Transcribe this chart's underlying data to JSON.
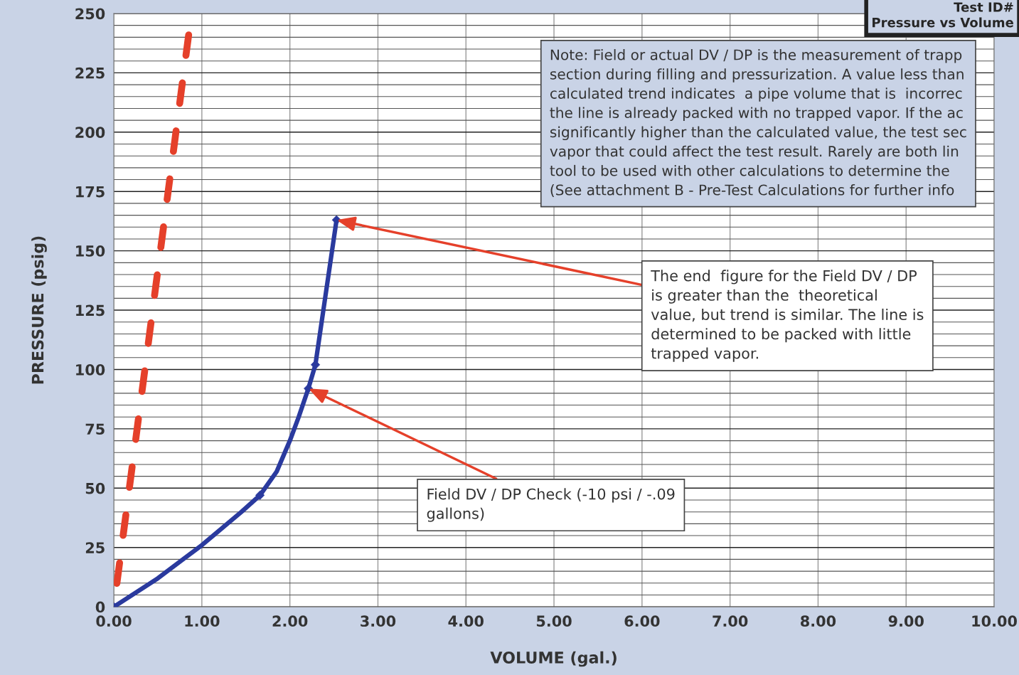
{
  "chart_data": {
    "type": "line",
    "title": "Test ID#",
    "subtitle": "Pressure vs Volume",
    "xlabel": "VOLUME (gal.)",
    "ylabel": "PRESSURE (psig)",
    "xlim": [
      0,
      10
    ],
    "ylim": [
      0,
      250
    ],
    "xticks": [
      {
        "value": 0,
        "label": "0.00"
      },
      {
        "value": 1,
        "label": "1.00"
      },
      {
        "value": 2,
        "label": "2.00"
      },
      {
        "value": 3,
        "label": "3.00"
      },
      {
        "value": 4,
        "label": "4.00"
      },
      {
        "value": 5,
        "label": "5.00"
      },
      {
        "value": 6,
        "label": "6.00"
      },
      {
        "value": 7,
        "label": "7.00"
      },
      {
        "value": 8,
        "label": "8.00"
      },
      {
        "value": 9,
        "label": "9.00"
      },
      {
        "value": 10,
        "label": "10.00"
      }
    ],
    "yticks": [
      0,
      25,
      50,
      75,
      100,
      125,
      150,
      175,
      200,
      225,
      250
    ],
    "grid": true,
    "legend": false,
    "series": [
      {
        "color": "#e5402a",
        "line_style": "dashed",
        "marker": "none",
        "x": [
          0,
          0.85
        ],
        "values": [
          0,
          241
        ]
      },
      {
        "color": "#2a3a9e",
        "line_style": "solid",
        "marker": "none",
        "x": [
          0,
          0.5,
          1.0,
          1.45,
          1.66,
          1.85,
          2.0,
          2.1,
          2.21,
          2.29,
          2.4,
          2.53
        ],
        "values": [
          0,
          12,
          26,
          40,
          47,
          57,
          70,
          80,
          92,
          102,
          130,
          163
        ]
      },
      {
        "type": "scatter",
        "color": "#2a3a9e",
        "marker": "diamond",
        "x": [
          0,
          1.66,
          2.21,
          2.29,
          2.53
        ],
        "values": [
          0,
          47,
          92,
          102,
          163
        ]
      }
    ],
    "annotations": [
      "Note: Field or actual DV / DP is the measurement of trapp\nsection during filling and pressurization. A value less than\ncalculated trend indicates  a pipe volume that is  incorrec\nthe line is already packed with no trapped vapor. If the ac\nsignificantly higher than the calculated value, the test sec\nvapor that could affect the test result. Rarely are both lin\ntool to be used with other calculations to determine the\n(See attachment B - Pre-Test Calculations for further info",
      {
        "text": "The end  figure for the Field DV / DP\nis greater than the  theoretical\nvalue, but trend is similar. The line is\ndetermined to be packed with little\ntrapped vapor.",
        "x": 2.53,
        "y": 163
      },
      {
        "text": "Field DV / DP Check (-10 psi / -.09\ngallons)",
        "x": 2.21,
        "y": 92
      }
    ]
  }
}
